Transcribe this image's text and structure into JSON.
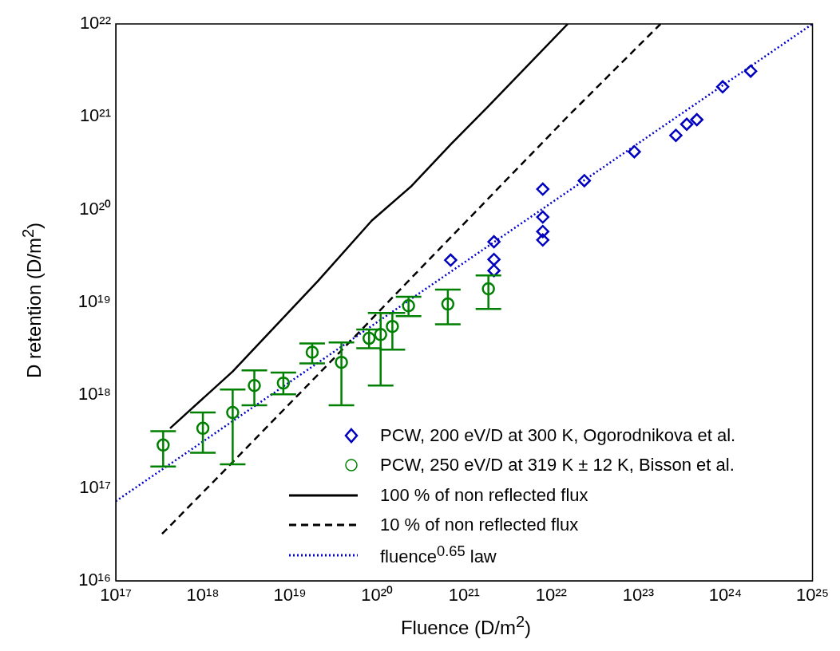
{
  "chart_data": {
    "type": "scatter",
    "xlabel": "Fluence (D/m$^{2}$)",
    "ylabel": "D retention (D/m$^{2}$)",
    "log": "xy",
    "grid": false,
    "legend": "bottom right",
    "xlim": [
      1e+17,
      1e+25
    ],
    "ylim": [
      1e+16,
      1e+22
    ],
    "xticks": [
      {
        "value": 1e+17,
        "label": "10¹⁷"
      },
      {
        "value": 1e+18,
        "label": "10¹⁸"
      },
      {
        "value": 1e+19,
        "label": "10¹⁹"
      },
      {
        "value": 1e+20,
        "label": "10²⁰"
      },
      {
        "value": 1e+21,
        "label": "10²¹"
      },
      {
        "value": 1e+22,
        "label": "10²²"
      },
      {
        "value": 1e+23,
        "label": "10²³"
      },
      {
        "value": 1e+24,
        "label": "10²⁴"
      },
      {
        "value": 1e+25,
        "label": "10²⁵"
      }
    ],
    "yticks": [
      {
        "value": 1e+16,
        "label": "10¹⁶"
      },
      {
        "value": 1e+17,
        "label": "10¹⁷"
      },
      {
        "value": 1e+18,
        "label": "10¹⁸"
      },
      {
        "value": 1e+19,
        "label": "10¹⁹"
      },
      {
        "value": 1e+20,
        "label": "10²⁰"
      },
      {
        "value": 1e+21,
        "label": "10²¹"
      },
      {
        "value": 1e+22,
        "label": "10²²"
      }
    ],
    "series": [
      {
        "name": "PCW, 200 eV/D at 300 K, Ogorodnikova et al.",
        "type": "scatter",
        "marker": "diamond",
        "color": "#0000c0",
        "x": [
          7e+20,
          2.2e+21,
          2.2e+21,
          2.2e+21,
          8e+21,
          8e+21,
          8e+21,
          8e+21,
          2.4e+22,
          9e+22,
          2.7e+23,
          3.6e+23,
          4.7e+23,
          9.3e+23,
          1.95e+24
        ],
        "values": [
          2.85e+19,
          4.5e+19,
          2.9e+19,
          2.2e+19,
          1.66e+20,
          8.3e+19,
          5.8e+19,
          4.7e+19,
          2.05e+20,
          4.2e+20,
          6.3e+20,
          8.3e+20,
          9.3e+20,
          2.1e+21,
          3.1e+21
        ]
      },
      {
        "name": "PCW, 250 eV/D at 319 K ± 12 K, Bisson et al.",
        "type": "scatter",
        "marker": "circle",
        "color": "#008000",
        "x": [
          3.5e+17,
          1e+18,
          2.2e+18,
          3.9e+18,
          8.4e+18,
          1.8e+19,
          3.9e+19,
          8.1e+19,
          1.1e+20,
          1.5e+20,
          2.3e+20,
          6.5e+20,
          1.9e+21
        ],
        "values": [
          2.9e+17,
          4.4e+17,
          6.5e+17,
          1.27e+18,
          1.35e+18,
          2.9e+18,
          2.26e+18,
          4.1e+18,
          4.5e+18,
          5.5e+18,
          9.2e+18,
          9.6e+18,
          1.4e+19
        ],
        "errors": [
          [
            1.7e+17,
            4.1e+17
          ],
          [
            2.4e+17,
            6.5e+17
          ],
          [
            1.8e+17,
            1.15e+18
          ],
          [
            7.8e+17,
            1.85e+18
          ],
          [
            1.02e+18,
            1.75e+18
          ],
          [
            2.2e+18,
            3.6e+18
          ],
          [
            7.8e+17,
            3.7e+18
          ],
          [
            3.2e+18,
            5.1e+18
          ],
          [
            1.27e+18,
            7.7e+18
          ],
          [
            3.1e+18,
            7.7e+18
          ],
          [
            7.1e+18,
            1.15e+19
          ],
          [
            5.8e+18,
            1.37e+19
          ],
          [
            8.5e+18,
            1.95e+19
          ]
        ]
      },
      {
        "name": "100 % of non reflected flux",
        "type": "line",
        "marker": "none",
        "line_style": "solid",
        "color": "#000000",
        "x": [
          4.2e+17,
          2.2e+18,
          2.1e+19,
          8.7e+19,
          2.5e+20,
          7.1e+20,
          1.9e+21,
          2.5e+21,
          1.55e+22
        ],
        "values": [
          4.4e+17,
          1.8e+18,
          1.7e+19,
          7.6e+19,
          1.8e+20,
          5.1e+20,
          1.3e+21,
          1.7e+21,
          1e+22
        ]
      },
      {
        "name": "10 % of non reflected flux",
        "type": "line",
        "marker": "none",
        "line_style": "dashed",
        "color": "#000000",
        "x": [
          3.4e+17,
          2.2e+18,
          3.8e+19,
          1.6e+20,
          1.4e+21,
          1.65e+22,
          1.8e+23
        ],
        "values": [
          3.2e+16,
          1.9e+17,
          2.95e+18,
          1.2e+19,
          9.8e+19,
          1.07e+21,
          1e+22
        ]
      },
      {
        "name": "fluence$^{0.65}$ law",
        "type": "line",
        "marker": "none",
        "line_style": "dotted",
        "color": "#0000cc",
        "x": [
          1e+17,
          1e+25
        ],
        "values": [
          7.2e+16,
          1e+22
        ]
      }
    ]
  }
}
